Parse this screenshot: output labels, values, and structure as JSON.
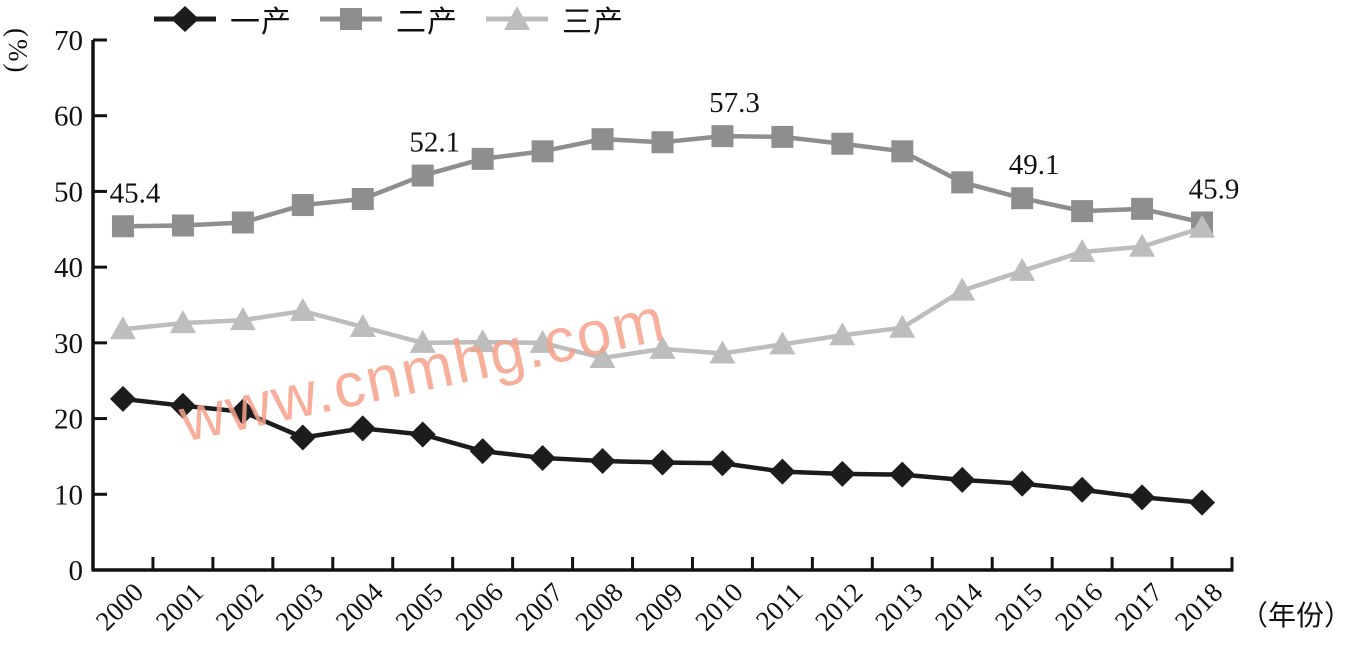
{
  "chart_data": {
    "type": "line",
    "title": "",
    "y_unit": "(%)",
    "x_unit": "（年份）",
    "ylim": [
      0,
      70
    ],
    "y_ticks": [
      0,
      10,
      20,
      30,
      40,
      50,
      60,
      70
    ],
    "grid": false,
    "legend_position": "top",
    "categories": [
      "2000",
      "2001",
      "2002",
      "2003",
      "2004",
      "2005",
      "2006",
      "2007",
      "2008",
      "2009",
      "2010",
      "2011",
      "2012",
      "2013",
      "2014",
      "2015",
      "2016",
      "2017",
      "2018"
    ],
    "series": [
      {
        "name": "一产",
        "marker": "diamond",
        "color": "#1c1c1c",
        "values": [
          22.6,
          21.7,
          20.9,
          17.5,
          18.7,
          17.9,
          15.7,
          14.8,
          14.4,
          14.2,
          14.1,
          13.0,
          12.7,
          12.6,
          11.9,
          11.4,
          10.6,
          9.6,
          8.9
        ]
      },
      {
        "name": "二产",
        "marker": "square",
        "color": "#8e8e8e",
        "values": [
          45.4,
          45.5,
          45.9,
          48.2,
          49.0,
          52.1,
          54.3,
          55.3,
          56.9,
          56.5,
          57.3,
          57.2,
          56.3,
          55.3,
          51.2,
          49.1,
          47.4,
          47.7,
          45.9
        ]
      },
      {
        "name": "三产",
        "marker": "triangle",
        "color": "#bdbdbd",
        "values": [
          31.8,
          32.6,
          33.0,
          34.2,
          32.1,
          30.0,
          30.1,
          30.0,
          28.0,
          29.2,
          28.6,
          29.8,
          31.0,
          32.0,
          36.9,
          39.5,
          42.0,
          42.7,
          45.2
        ]
      }
    ],
    "annotations": [
      {
        "series": "二产",
        "year": "2000",
        "text": "45.4"
      },
      {
        "series": "二产",
        "year": "2005",
        "text": "52.1"
      },
      {
        "series": "二产",
        "year": "2010",
        "text": "57.3"
      },
      {
        "series": "二产",
        "year": "2015",
        "text": "49.1"
      },
      {
        "series": "二产",
        "year": "2018",
        "text": "45.9"
      }
    ]
  },
  "watermark": {
    "text": "www.cnmhg.com",
    "color": "#f6a28b"
  }
}
